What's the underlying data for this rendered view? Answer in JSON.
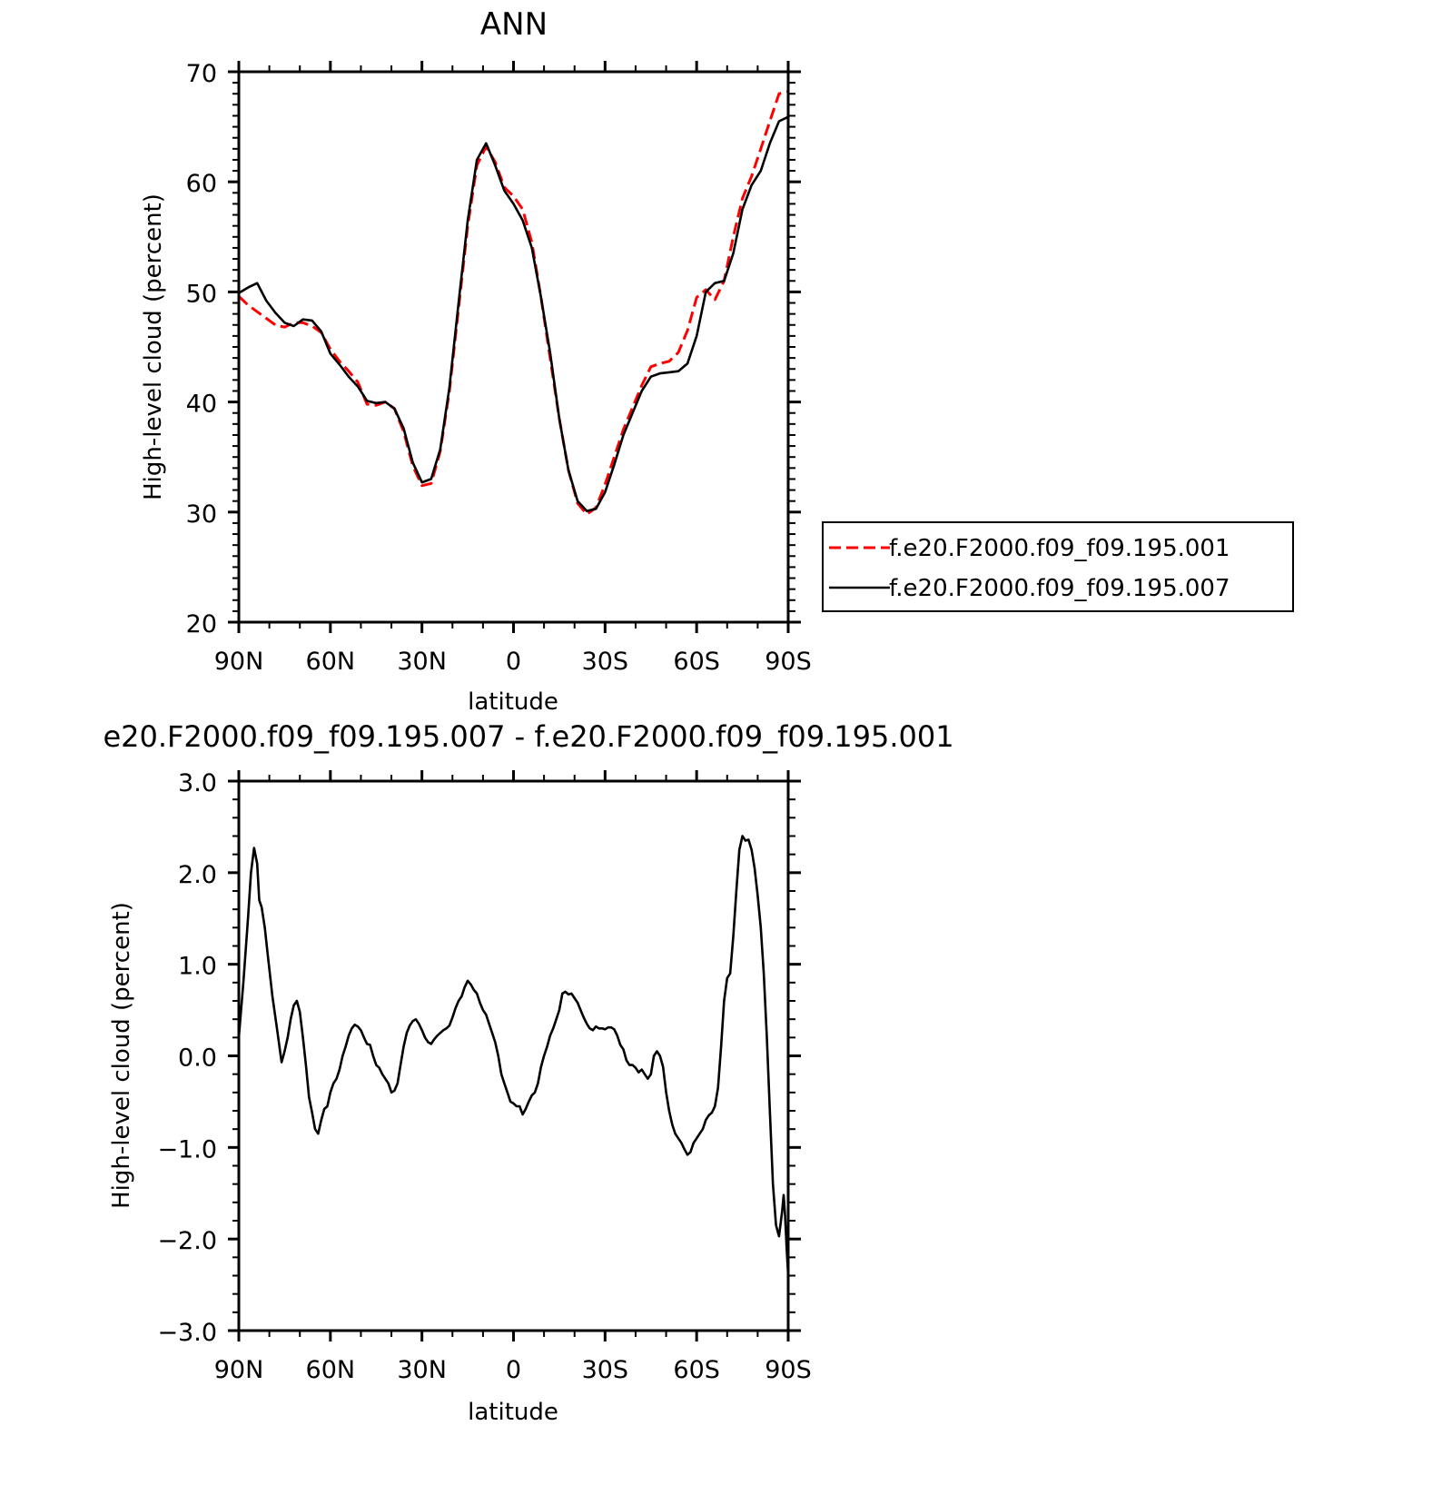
{
  "chart_data": [
    {
      "type": "line",
      "title": "ANN",
      "xlabel": "latitude",
      "ylabel": "High-level cloud (percent)",
      "xlim": [
        90,
        -90
      ],
      "ylim": [
        20,
        70
      ],
      "x_ticks": [
        90,
        60,
        30,
        0,
        -30,
        -60,
        -90
      ],
      "x_tick_labels": [
        "90N",
        "60N",
        "30N",
        "0",
        "30S",
        "60S",
        "90S"
      ],
      "y_ticks": [
        20,
        30,
        40,
        50,
        60,
        70
      ],
      "y_tick_labels": [
        "20",
        "30",
        "40",
        "50",
        "60",
        "70"
      ],
      "legend_position": "right",
      "series": [
        {
          "name": "f.e20.F2000.f09_f09.195.001",
          "color": "#ff0000",
          "dash": "dashed",
          "x": [
            90,
            87,
            84,
            81,
            78,
            75,
            72,
            69,
            66,
            63,
            60,
            57,
            54,
            51,
            48,
            45,
            42,
            39,
            36,
            33,
            30,
            27,
            24,
            21,
            18,
            15,
            12,
            9,
            6,
            3,
            0,
            -3,
            -6,
            -9,
            -12,
            -15,
            -18,
            -21,
            -24,
            -27,
            -30,
            -33,
            -36,
            -39,
            -42,
            -45,
            -48,
            -51,
            -54,
            -57,
            -60,
            -63,
            -66,
            -69,
            -72,
            -75,
            -78,
            -81,
            -84,
            -87,
            -90
          ],
          "y": [
            49.6,
            48.8,
            48.2,
            47.6,
            47.0,
            46.8,
            47.2,
            47.2,
            46.9,
            46.3,
            44.8,
            43.7,
            42.8,
            41.8,
            39.8,
            39.7,
            40.0,
            39.4,
            37.3,
            34.2,
            32.4,
            32.6,
            35.5,
            41.0,
            48.5,
            56.0,
            61.5,
            63.2,
            61.8,
            59.5,
            58.7,
            57.5,
            54.5,
            49.5,
            44.0,
            38.5,
            33.8,
            30.8,
            29.8,
            30.4,
            32.5,
            35.0,
            37.5,
            39.5,
            41.5,
            43.2,
            43.5,
            43.7,
            44.5,
            46.5,
            49.5,
            50.2,
            49.3,
            51.0,
            55.0,
            58.5,
            60.5,
            63.0,
            65.5,
            68.0,
            68.2
          ]
        },
        {
          "name": "f.e20.F2000.f09_f09.195.007",
          "color": "#000000",
          "dash": "solid",
          "x": [
            90,
            87,
            84,
            81,
            78,
            75,
            72,
            69,
            66,
            63,
            60,
            57,
            54,
            51,
            48,
            45,
            42,
            39,
            36,
            33,
            30,
            27,
            24,
            21,
            18,
            15,
            12,
            9,
            6,
            3,
            0,
            -3,
            -6,
            -9,
            -12,
            -15,
            -18,
            -21,
            -24,
            -27,
            -30,
            -33,
            -36,
            -39,
            -42,
            -45,
            -48,
            -51,
            -54,
            -57,
            -60,
            -63,
            -66,
            -69,
            -72,
            -75,
            -78,
            -81,
            -84,
            -87,
            -90
          ],
          "y": [
            49.9,
            50.4,
            50.8,
            49.2,
            48.1,
            47.2,
            46.9,
            47.5,
            47.4,
            46.4,
            44.4,
            43.4,
            42.3,
            41.4,
            40.1,
            39.9,
            40.0,
            39.4,
            37.6,
            34.5,
            32.7,
            33.0,
            35.7,
            41.3,
            49.0,
            56.5,
            62.0,
            63.5,
            61.5,
            59.2,
            58.0,
            56.5,
            54.0,
            49.5,
            44.5,
            38.5,
            33.8,
            31.0,
            30.1,
            30.3,
            31.8,
            34.3,
            37.0,
            39.0,
            41.0,
            42.3,
            42.6,
            42.7,
            42.8,
            43.5,
            46.0,
            50.0,
            50.8,
            51.0,
            53.5,
            57.5,
            59.7,
            61.0,
            63.5,
            65.5,
            65.9
          ]
        }
      ]
    },
    {
      "type": "line",
      "title": "e20.F2000.f09_f09.195.007 - f.e20.F2000.f09_f09.195.001",
      "xlabel": "latitude",
      "ylabel": "High-level cloud (percent)",
      "xlim": [
        90,
        -90
      ],
      "ylim": [
        -3.0,
        3.0
      ],
      "x_ticks": [
        90,
        60,
        30,
        0,
        -30,
        -60,
        -90
      ],
      "x_tick_labels": [
        "90N",
        "60N",
        "30N",
        "0",
        "30S",
        "60S",
        "90S"
      ],
      "y_ticks": [
        -3.0,
        -2.0,
        -1.0,
        0.0,
        1.0,
        2.0,
        3.0
      ],
      "y_tick_labels": [
        "−3.0",
        "−2.0",
        "−1.0",
        "0.0",
        "1.0",
        "2.0",
        "3.0"
      ],
      "series": [
        {
          "color": "#000000",
          "dash": "solid",
          "x": [
            90,
            88.5,
            87,
            86,
            85,
            84,
            83.3,
            82.5,
            81.5,
            80.5,
            79,
            77.5,
            76,
            75,
            74,
            73,
            72,
            71,
            70,
            69,
            68,
            67,
            66,
            65,
            64,
            63,
            62,
            61,
            60,
            59,
            58,
            57,
            56,
            55,
            54,
            53,
            52,
            51,
            50,
            49,
            48,
            47,
            46,
            45,
            44,
            43,
            42,
            41,
            40,
            39,
            38,
            37,
            36,
            35,
            34,
            33,
            32,
            31,
            30,
            29,
            28,
            27,
            26,
            25,
            24,
            23,
            22,
            21,
            20,
            19,
            18,
            17,
            16,
            15,
            14,
            13,
            12,
            11,
            10,
            9,
            8,
            7,
            6,
            5,
            4,
            3,
            2,
            1,
            0,
            -1,
            -2,
            -3,
            -4,
            -5,
            -6,
            -7,
            -8,
            -9,
            -10,
            -11,
            -12,
            -13,
            -14,
            -15,
            -16,
            -17,
            -18,
            -19,
            -20,
            -21,
            -22,
            -23,
            -24,
            -25,
            -26,
            -27,
            -28,
            -29,
            -30,
            -31,
            -32,
            -33,
            -34,
            -35,
            -36,
            -37,
            -38,
            -39,
            -40,
            -41,
            -42,
            -43,
            -44,
            -45,
            -46,
            -47,
            -48,
            -49,
            -50,
            -51,
            -52,
            -53,
            -54,
            -55,
            -56,
            -57,
            -58,
            -59,
            -60,
            -61,
            -62,
            -63,
            -64,
            -65,
            -66,
            -67,
            -68,
            -69,
            -70,
            -71,
            -72,
            -73,
            -74,
            -75,
            -76,
            -77,
            -78,
            -79,
            -80,
            -81,
            -82,
            -83,
            -84,
            -85,
            -86,
            -87,
            -88,
            -88.5,
            -89,
            -89.5,
            -90
          ],
          "y": [
            0.2,
            0.8,
            1.5,
            2.0,
            2.27,
            2.1,
            1.7,
            1.62,
            1.4,
            1.1,
            0.65,
            0.3,
            -0.07,
            0.05,
            0.2,
            0.4,
            0.55,
            0.6,
            0.48,
            0.2,
            -0.1,
            -0.45,
            -0.62,
            -0.8,
            -0.85,
            -0.7,
            -0.58,
            -0.55,
            -0.4,
            -0.3,
            -0.25,
            -0.15,
            0.0,
            0.1,
            0.22,
            0.3,
            0.34,
            0.32,
            0.28,
            0.2,
            0.13,
            0.12,
            0.0,
            -0.1,
            -0.13,
            -0.2,
            -0.25,
            -0.3,
            -0.4,
            -0.38,
            -0.3,
            -0.1,
            0.1,
            0.25,
            0.33,
            0.38,
            0.4,
            0.35,
            0.28,
            0.2,
            0.15,
            0.13,
            0.18,
            0.22,
            0.25,
            0.28,
            0.3,
            0.33,
            0.42,
            0.52,
            0.6,
            0.65,
            0.75,
            0.82,
            0.78,
            0.72,
            0.68,
            0.58,
            0.5,
            0.45,
            0.35,
            0.25,
            0.15,
            0.0,
            -0.2,
            -0.3,
            -0.4,
            -0.5,
            -0.52,
            -0.55,
            -0.55,
            -0.64,
            -0.58,
            -0.5,
            -0.43,
            -0.4,
            -0.3,
            -0.12,
            0.0,
            0.1,
            0.22,
            0.3,
            0.4,
            0.5,
            0.68,
            0.7,
            0.67,
            0.68,
            0.63,
            0.58,
            0.5,
            0.42,
            0.35,
            0.3,
            0.28,
            0.32,
            0.3,
            0.3,
            0.29,
            0.31,
            0.31,
            0.29,
            0.22,
            0.12,
            0.07,
            -0.05,
            -0.1,
            -0.1,
            -0.13,
            -0.18,
            -0.15,
            -0.2,
            -0.25,
            -0.2,
            0.0,
            0.05,
            0.0,
            -0.12,
            -0.4,
            -0.6,
            -0.75,
            -0.85,
            -0.9,
            -0.95,
            -1.02,
            -1.08,
            -1.05,
            -0.95,
            -0.9,
            -0.85,
            -0.8,
            -0.7,
            -0.65,
            -0.62,
            -0.55,
            -0.35,
            0.1,
            0.6,
            0.85,
            0.9,
            1.3,
            1.8,
            2.25,
            2.4,
            2.35,
            2.36,
            2.25,
            2.05,
            1.75,
            1.4,
            0.9,
            0.2,
            -0.6,
            -1.4,
            -1.85,
            -1.97,
            -1.7,
            -1.52,
            -1.75,
            -2.1,
            -2.4
          ]
        }
      ]
    }
  ]
}
